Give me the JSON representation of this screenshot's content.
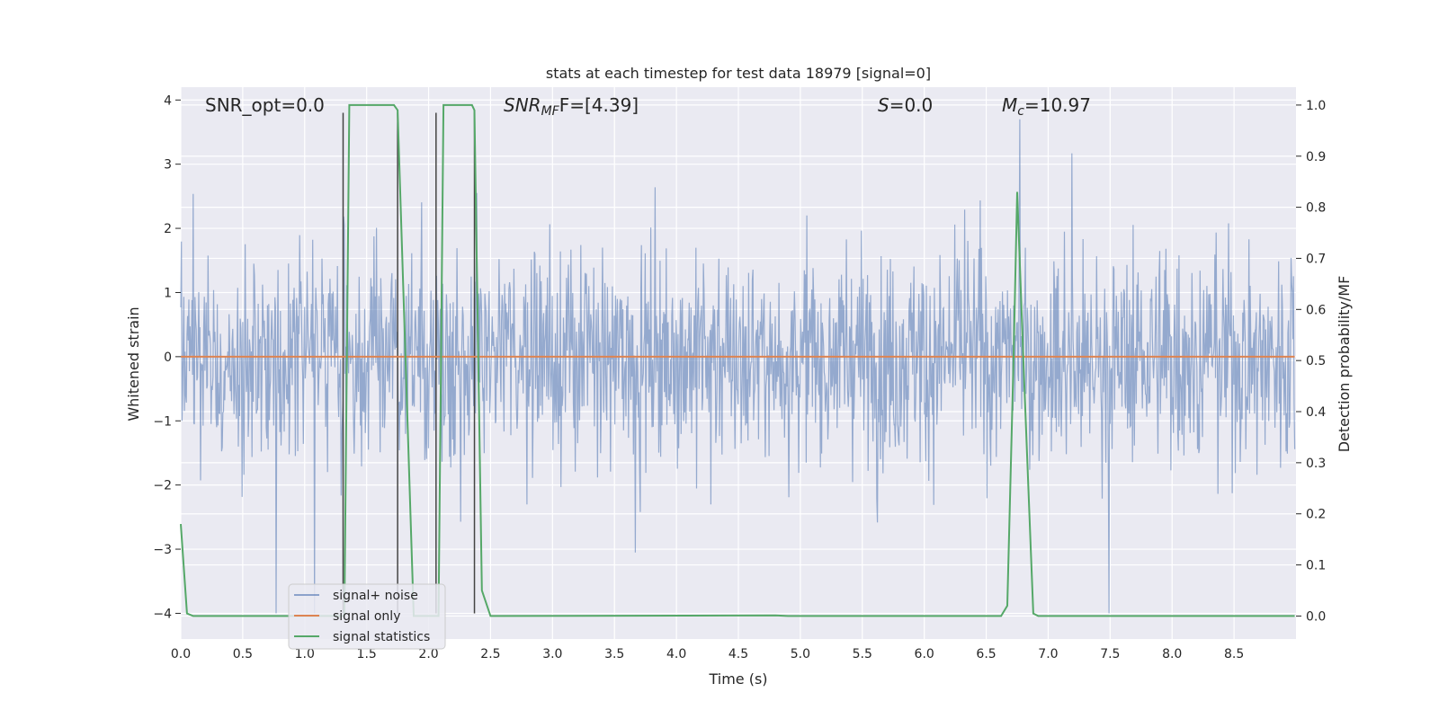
{
  "chart_data": {
    "type": "line",
    "title": "stats at each timestep for test data 18979 [signal=0]",
    "xlabel": "Time (s)",
    "ylabel": "Whitened strain",
    "ylabel_right": "Detection probability/MF",
    "xlim": [
      0.0,
      9.0
    ],
    "ylim": [
      -4.4,
      4.2
    ],
    "ylim_right": [
      -0.045,
      1.035
    ],
    "x_ticks": [
      "0.0",
      "0.5",
      "1.0",
      "1.5",
      "2.0",
      "2.5",
      "3.0",
      "3.5",
      "4.0",
      "4.5",
      "5.0",
      "5.5",
      "6.0",
      "6.5",
      "7.0",
      "7.5",
      "8.0",
      "8.5"
    ],
    "y_ticks": [
      "4",
      "3",
      "2",
      "1",
      "0",
      "−1",
      "−2",
      "−3",
      "−4"
    ],
    "y_ticks_right": [
      "1.0",
      "0.9",
      "0.8",
      "0.7",
      "0.6",
      "0.5",
      "0.4",
      "0.3",
      "0.2",
      "0.1",
      "0.0"
    ],
    "grid": true,
    "legend_position": "lower-left",
    "annotations": {
      "snr_opt": "SNR_opt=0.0",
      "snr_mf_main": "SNR",
      "snr_mf_sub": "MF",
      "snr_mf_tail": "F=[4.39]",
      "s_main": "S",
      "s_tail": "=0.0",
      "mc_main": "M",
      "mc_sub": "c",
      "mc_tail": "=10.97"
    },
    "noise": {
      "name": "signal+ noise",
      "color": "#4c72b0",
      "samples": 1800,
      "approx_range": [
        -4.0,
        3.7
      ],
      "note_values": "dense noise band; full-range spikes near 0.77s, 1.08s, 6.78s, 7.5s"
    },
    "series": [
      {
        "name": "signal only",
        "color": "#dd8452",
        "x": [
          0.0,
          8.99
        ],
        "y": [
          0.0,
          0.0
        ]
      },
      {
        "name": "signal statistics",
        "color": "#55a868",
        "x": [
          0.0,
          0.05,
          0.1,
          1.25,
          1.32,
          1.36,
          1.41,
          1.72,
          1.75,
          1.88,
          1.93,
          2.08,
          2.12,
          2.35,
          2.37,
          2.43,
          2.5,
          4.8,
          4.9,
          6.62,
          6.67,
          6.72,
          6.75,
          6.8,
          6.88,
          6.92,
          8.99
        ],
        "y": [
          0.18,
          0.005,
          0.0,
          0.0,
          0.0,
          1.0,
          1.0,
          1.0,
          0.99,
          0.0,
          0.0,
          0.0,
          1.0,
          1.0,
          0.99,
          0.05,
          0.0,
          0.001,
          0.0,
          0.0,
          0.02,
          0.5,
          0.83,
          0.5,
          0.005,
          0.0,
          0.0
        ]
      }
    ],
    "event_lines": [
      {
        "x": 1.31,
        "y1": -4.0,
        "y2": 3.8
      },
      {
        "x": 1.75,
        "y1": -4.0,
        "y2": 3.8
      },
      {
        "x": 2.06,
        "y1": -4.0,
        "y2": 3.8
      },
      {
        "x": 2.37,
        "y1": -4.0,
        "y2": 3.8
      }
    ],
    "legend": [
      "signal+ noise",
      "signal only",
      "signal statistics"
    ]
  }
}
